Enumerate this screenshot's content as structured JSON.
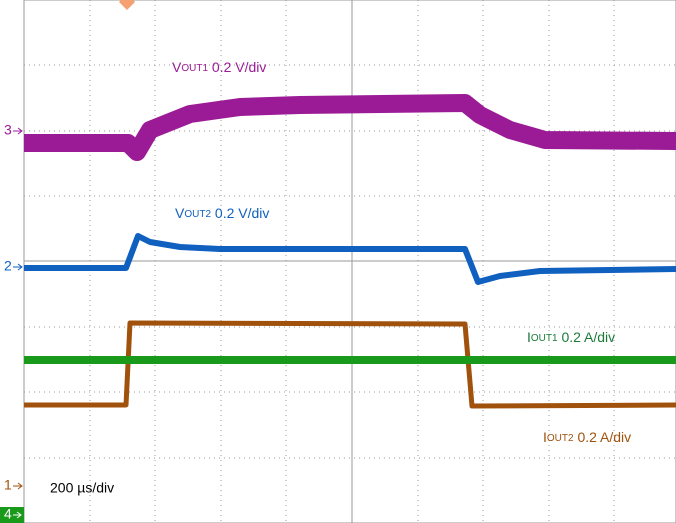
{
  "channels": {
    "ch3": "3",
    "ch2": "2",
    "ch1": "1",
    "ch4": "4"
  },
  "labels": {
    "vout1": {
      "main": "V",
      "sub": "OUT1",
      "rest": " 0.2 V/div"
    },
    "vout2": {
      "main": "V",
      "sub": "OUT2",
      "rest": " 0.2 V/div"
    },
    "iout1": {
      "main": "I",
      "sub": "OUT1",
      "rest": " 0.2 A/div"
    },
    "iout2": {
      "main": "I",
      "sub": "OUT2",
      "rest": " 0.2 A/div"
    }
  },
  "timebase": "200 µs/div"
}
